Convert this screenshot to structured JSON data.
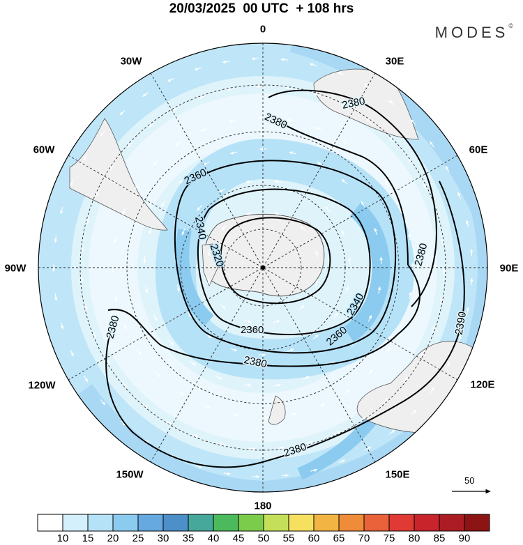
{
  "title": "20/03/2025  00 UTC  + 108 hrs",
  "logo": {
    "text": "MODES",
    "mark": "©"
  },
  "map": {
    "projection": "south-polar-stereographic",
    "longitude_labels": [
      "0",
      "30E",
      "60E",
      "90E",
      "120E",
      "150E",
      "180",
      "150W",
      "120W",
      "90W",
      "60W",
      "30W"
    ],
    "contour_labels": [
      "2320",
      "2340",
      "2360",
      "2380",
      "2390"
    ],
    "features": [
      "antarctica",
      "south-america",
      "africa",
      "australia",
      "new-zealand"
    ]
  },
  "colorbar": {
    "ticks": [
      "10",
      "15",
      "20",
      "25",
      "30",
      "35",
      "40",
      "45",
      "50",
      "55",
      "60",
      "65",
      "70",
      "75",
      "80",
      "85",
      "90"
    ],
    "colors": [
      "#ffffff",
      "#d4f0fc",
      "#b6e2f8",
      "#8ccbf0",
      "#65a9e0",
      "#4d8fc8",
      "#46a89a",
      "#4cba5c",
      "#7ccc4c",
      "#c4e05a",
      "#f6e060",
      "#f2b442",
      "#ef8c3a",
      "#e9623a",
      "#e03a34",
      "#c8242c",
      "#ac1c24",
      "#8c1414"
    ]
  },
  "reference_vector": {
    "value": "50"
  }
}
